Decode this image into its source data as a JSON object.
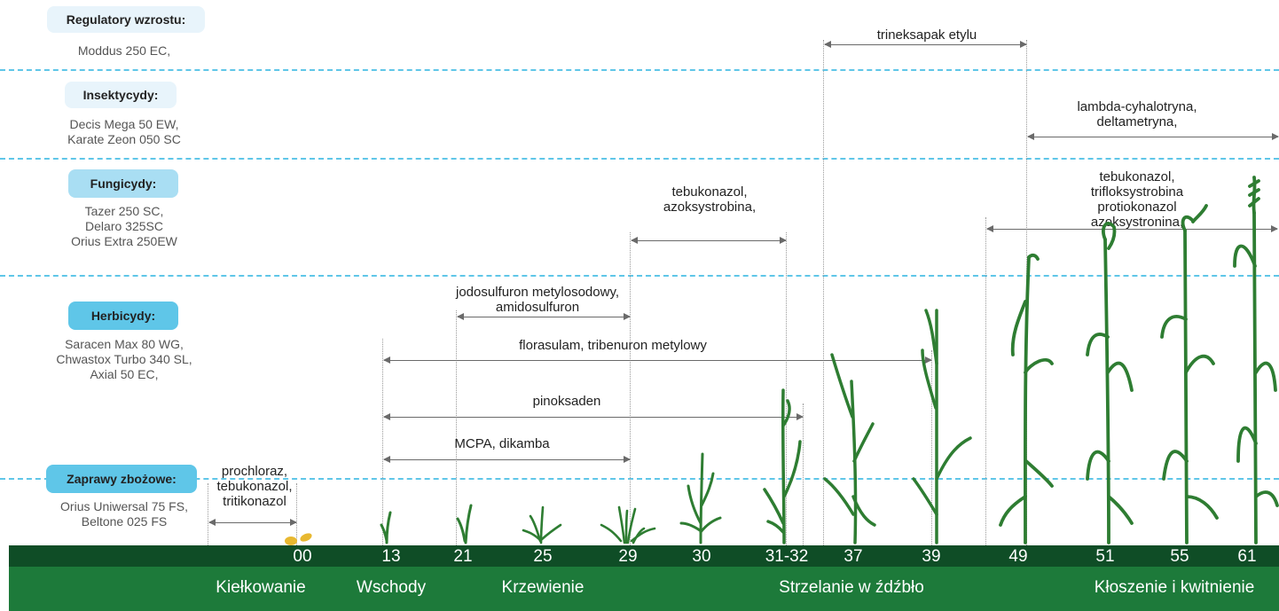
{
  "sections": {
    "growth_regulators": {
      "label": "Regulatory wzrostu:",
      "products": "Moddus 250 EC,"
    },
    "insecticides": {
      "label": "Insektycydy:",
      "products": "Decis Mega 50 EW,\nKarate Zeon 050 SC"
    },
    "fungicides": {
      "label": "Fungicydy:",
      "products": "Tazer 250 SC,\nDelaro 325SC\nOrius Extra 250EW"
    },
    "herbicides": {
      "label": "Herbicydy:",
      "products": "Saracen Max 80 WG,\nChwastox Turbo 340 SL,\nAxial 50 EC,"
    },
    "seed_treatments": {
      "label": "Zaprawy zbożowe:",
      "products": "Orius Uniwersal 75 FS,\nBeltone 025 FS"
    }
  },
  "applications": {
    "trineksapak": "trineksapak etylu",
    "lambda": "lambda-cyhalotryna,\ndeltametryna,",
    "fung_late": "tebukonazol, trifloksystrobina\nprotiokonazol\nazoksystronina,",
    "fung_early": "tebukonazol,\nazoksystrobina,",
    "jodo": "jodosulfuron metylosodowy,\namidosulfuron",
    "florasulam": "florasulam, tribenuron metylowy",
    "pinoksaden": "pinoksaden",
    "mcpa": "MCPA, dikamba",
    "prochloraz": "prochloraz,\ntebukonazol,\ntritikonazol"
  },
  "stages": {
    "s00": "00",
    "s13": "13",
    "s21": "21",
    "s25": "25",
    "s29": "29",
    "s30": "30",
    "s3132": "31-32",
    "s37": "37",
    "s39": "39",
    "s49": "49",
    "s51": "51",
    "s55": "55",
    "s61": "61"
  },
  "phases": {
    "kielkowanie": "Kiełkowanie",
    "wschody": "Wschody",
    "krzewienie": "Krzewienie",
    "strzelanie": "Strzelanie w źdźbło",
    "kloszenie": "Kłoszenie i kwitnienie"
  },
  "colors": {
    "dashed_separator": "#5fc6e8",
    "badge_light": "#e8f4fb",
    "badge_medium": "#a9def3",
    "badge_strong": "#5fc6e8",
    "plant_green": "#2e7d32",
    "bar_dark": "#0f4d26",
    "bar_green": "#1d7a3a",
    "seed_yellow": "#e8b830"
  }
}
